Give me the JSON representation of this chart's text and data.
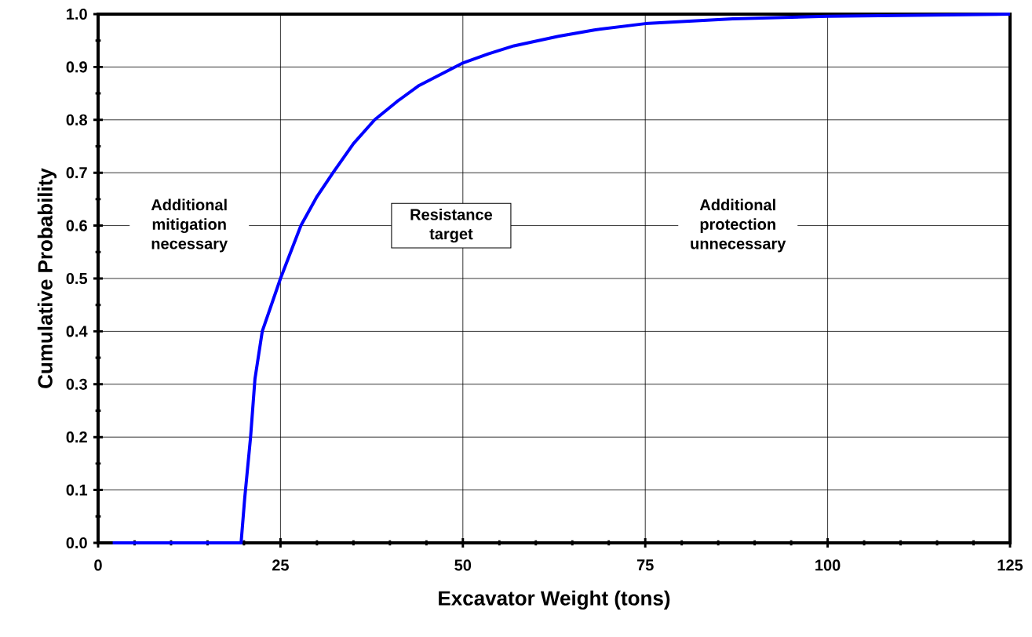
{
  "chart_data": {
    "type": "line",
    "xlabel": "Excavator Weight (tons)",
    "ylabel": "Cumulative Probability",
    "x": [
      2,
      18,
      19.6,
      20.1,
      20.9,
      21.5,
      22.5,
      25,
      27.8,
      30,
      32.2,
      35,
      37.9,
      41,
      44,
      49.9,
      53.5,
      57,
      63.1,
      68,
      75,
      87,
      100,
      125
    ],
    "series": [
      {
        "color": "#0000ff",
        "values": [
          0,
          0,
          0,
          0.085,
          0.2,
          0.31,
          0.4,
          0.5,
          0.6,
          0.655,
          0.7,
          0.755,
          0.8,
          0.835,
          0.865,
          0.907,
          0.925,
          0.94,
          0.958,
          0.97,
          0.982,
          0.991,
          0.996,
          1.0
        ]
      }
    ],
    "xlim": [
      0,
      125
    ],
    "ylim": [
      0,
      1
    ],
    "xticks": [
      0,
      {
        "value": 5,
        "label": null
      },
      {
        "value": 10,
        "label": null
      },
      {
        "value": 15,
        "label": null
      },
      {
        "value": 20,
        "label": null
      },
      25,
      {
        "value": 30,
        "label": null
      },
      {
        "value": 35,
        "label": null
      },
      {
        "value": 40,
        "label": null
      },
      {
        "value": 45,
        "label": null
      },
      50,
      {
        "value": 55,
        "label": null
      },
      {
        "value": 60,
        "label": null
      },
      {
        "value": 65,
        "label": null
      },
      {
        "value": 70,
        "label": null
      },
      75,
      {
        "value": 80,
        "label": null
      },
      {
        "value": 85,
        "label": null
      },
      {
        "value": 90,
        "label": null
      },
      {
        "value": 95,
        "label": null
      },
      100,
      {
        "value": 105,
        "label": null
      },
      {
        "value": 110,
        "label": null
      },
      {
        "value": 115,
        "label": null
      },
      {
        "value": 120,
        "label": null
      },
      125
    ],
    "yticks": [
      {
        "value": 0,
        "label": "0.0"
      },
      {
        "value": 0.05,
        "label": null
      },
      {
        "value": 0.1,
        "label": "0.1"
      },
      {
        "value": 0.15,
        "label": null
      },
      {
        "value": 0.2,
        "label": "0.2"
      },
      {
        "value": 0.25,
        "label": null
      },
      {
        "value": 0.3,
        "label": "0.3"
      },
      {
        "value": 0.35,
        "label": null
      },
      {
        "value": 0.4,
        "label": "0.4"
      },
      {
        "value": 0.45,
        "label": null
      },
      {
        "value": 0.5,
        "label": "0.5"
      },
      {
        "value": 0.55,
        "label": null
      },
      {
        "value": 0.6,
        "label": "0.6"
      },
      {
        "value": 0.65,
        "label": null
      },
      {
        "value": 0.7,
        "label": "0.7"
      },
      {
        "value": 0.75,
        "label": null
      },
      {
        "value": 0.8,
        "label": "0.8"
      },
      {
        "value": 0.85,
        "label": null
      },
      {
        "value": 0.9,
        "label": "0.9"
      },
      {
        "value": 0.95,
        "label": null
      },
      {
        "value": 1.0,
        "label": "1.0"
      }
    ],
    "grid": true,
    "marker": "none",
    "line_style": "solid",
    "annotations": [
      "Additional mitigation necessary",
      "Resistance target",
      "Additional protection unnecessary"
    ]
  }
}
